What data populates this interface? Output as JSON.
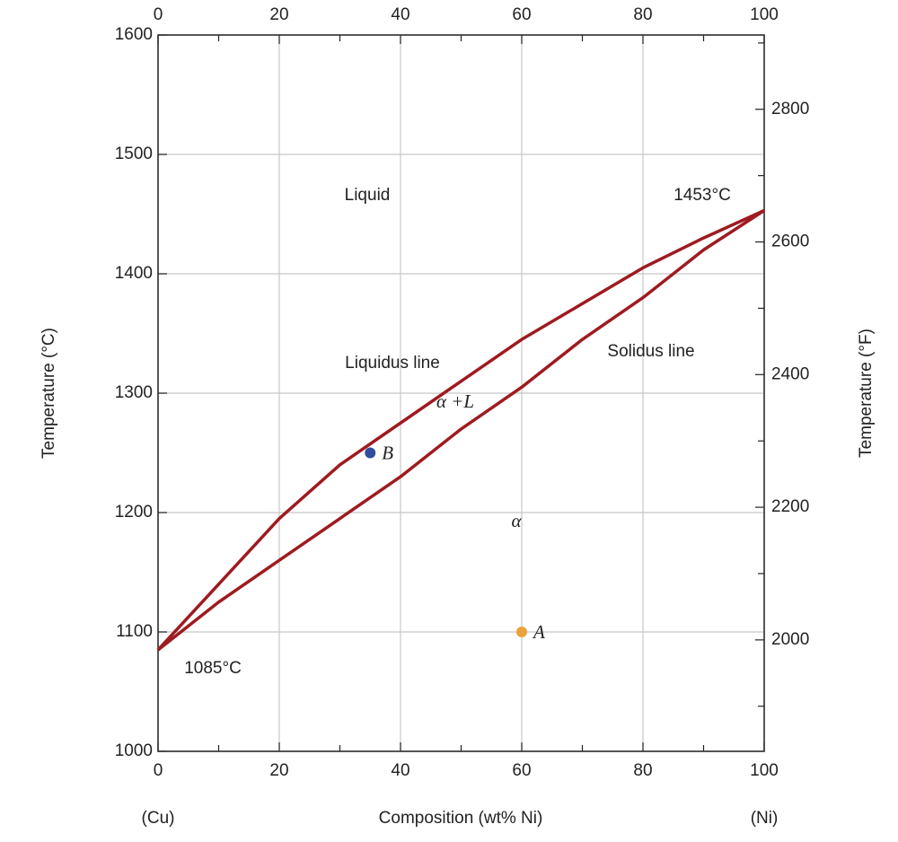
{
  "chart_data": {
    "type": "line",
    "x_label": "Composition (wt% Ni)",
    "y_label": "Temperature (°C)",
    "y2_label": "Temperature (°F)",
    "x_end_labels": [
      "(Cu)",
      "(Ni)"
    ],
    "xlim": [
      0,
      100
    ],
    "xticks": [
      0,
      20,
      40,
      60,
      80,
      100
    ],
    "x_minor_ticks": [
      10,
      30,
      50,
      70,
      90
    ],
    "ylim": [
      1000,
      1600
    ],
    "yticks": [
      1000,
      1100,
      1200,
      1300,
      1400,
      1500,
      1600
    ],
    "y2lim": [
      1832,
      2912
    ],
    "y2ticks": [
      2000,
      2200,
      2400,
      2600,
      2800
    ],
    "y2_minor_ticks": [
      1900,
      2100,
      2300,
      2500,
      2700,
      2900
    ],
    "grid": true,
    "x": [
      0,
      10,
      20,
      30,
      40,
      50,
      60,
      70,
      80,
      90,
      100
    ],
    "series": [
      {
        "name": "Liquidus line",
        "color": "#9e1b20",
        "values": [
          1085,
          1140,
          1195,
          1240,
          1275,
          1310,
          1345,
          1375,
          1405,
          1430,
          1453
        ]
      },
      {
        "name": "Solidus line",
        "color": "#9e1b20",
        "values": [
          1085,
          1125,
          1160,
          1195,
          1230,
          1270,
          1305,
          1345,
          1380,
          1420,
          1453
        ]
      }
    ],
    "points": [
      {
        "label": "A",
        "x": 60,
        "y": 1100,
        "color": "#e8a33a"
      },
      {
        "label": "B",
        "x": 35,
        "y": 1250,
        "color": "#2f4d9c"
      }
    ],
    "annotations": [
      "Liquid",
      "1453°C",
      "α +L",
      "α",
      "1085°C"
    ]
  }
}
